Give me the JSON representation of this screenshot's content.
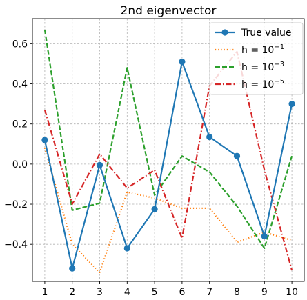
{
  "chart_data": {
    "type": "line",
    "title": "2nd eigenvector",
    "xlabel": "",
    "ylabel": "",
    "x": [
      1,
      2,
      3,
      4,
      5,
      6,
      7,
      8,
      9,
      10
    ],
    "xlim": [
      0.55,
      10.45
    ],
    "ylim": [
      -0.585,
      0.725
    ],
    "xticks": [
      "1",
      "2",
      "3",
      "4",
      "5",
      "6",
      "7",
      "8",
      "9",
      "10"
    ],
    "yticks": [
      {
        "value": -0.4,
        "label": "−0.4"
      },
      {
        "value": -0.2,
        "label": "−0.2"
      },
      {
        "value": 0.0,
        "label": "0.0"
      },
      {
        "value": 0.2,
        "label": "0.2"
      },
      {
        "value": 0.4,
        "label": "0.4"
      },
      {
        "value": 0.6,
        "label": "0.6"
      }
    ],
    "grid": true,
    "legend_position": "top-right",
    "series": [
      {
        "name": "True value",
        "color": "#1f77b4",
        "style": "solid-marker",
        "values": [
          0.12,
          -0.52,
          -0.005,
          -0.42,
          -0.225,
          0.51,
          0.135,
          0.04,
          -0.36,
          0.3
        ]
      },
      {
        "name_base": "h = 10",
        "name_exp": "−1",
        "color": "#ff7f0e",
        "style": "dotted",
        "values": [
          0.08,
          -0.4,
          -0.54,
          -0.14,
          -0.17,
          -0.22,
          -0.22,
          -0.39,
          -0.34,
          -0.38
        ]
      },
      {
        "name_base": "h = 10",
        "name_exp": "−3",
        "color": "#2ca02c",
        "style": "dashed",
        "values": [
          0.67,
          -0.23,
          -0.195,
          0.48,
          -0.155,
          0.04,
          -0.04,
          -0.21,
          -0.42,
          0.04
        ]
      },
      {
        "name_base": "h = 10",
        "name_exp": "−5",
        "color": "#d62728",
        "style": "dashdot",
        "values": [
          0.27,
          -0.2,
          0.05,
          -0.12,
          -0.03,
          -0.37,
          0.39,
          0.56,
          -0.03,
          -0.53
        ]
      }
    ]
  }
}
